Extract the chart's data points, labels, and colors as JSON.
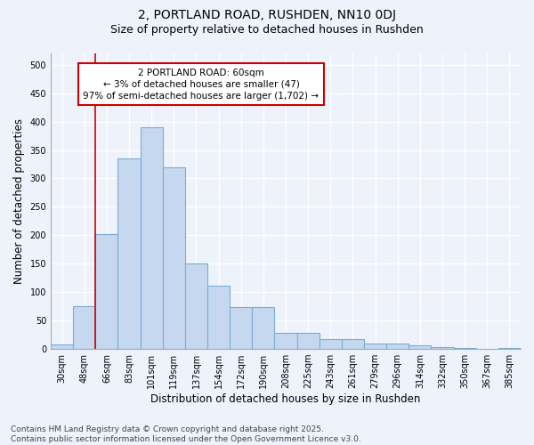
{
  "title_line1": "2, PORTLAND ROAD, RUSHDEN, NN10 0DJ",
  "title_line2": "Size of property relative to detached houses in Rushden",
  "xlabel": "Distribution of detached houses by size in Rushden",
  "ylabel": "Number of detached properties",
  "categories": [
    "30sqm",
    "48sqm",
    "66sqm",
    "83sqm",
    "101sqm",
    "119sqm",
    "137sqm",
    "154sqm",
    "172sqm",
    "190sqm",
    "208sqm",
    "225sqm",
    "243sqm",
    "261sqm",
    "279sqm",
    "296sqm",
    "314sqm",
    "332sqm",
    "350sqm",
    "367sqm",
    "385sqm"
  ],
  "values": [
    8,
    75,
    202,
    335,
    390,
    320,
    150,
    111,
    73,
    73,
    29,
    29,
    17,
    18,
    9,
    10,
    6,
    3,
    1,
    0,
    1
  ],
  "bar_color": "#c5d8f0",
  "bar_edge_color": "#7aaed4",
  "vline_color": "#cc0000",
  "annotation_text": "2 PORTLAND ROAD: 60sqm\n← 3% of detached houses are smaller (47)\n97% of semi-detached houses are larger (1,702) →",
  "annotation_box_facecolor": "#ffffff",
  "annotation_box_edgecolor": "#cc0000",
  "footer_text": "Contains HM Land Registry data © Crown copyright and database right 2025.\nContains public sector information licensed under the Open Government Licence v3.0.",
  "ylim": [
    0,
    520
  ],
  "yticks": [
    0,
    50,
    100,
    150,
    200,
    250,
    300,
    350,
    400,
    450,
    500
  ],
  "bg_color": "#eef2fb",
  "grid_color": "#ffffff",
  "title_fontsize": 10,
  "subtitle_fontsize": 9,
  "tick_fontsize": 7,
  "label_fontsize": 8.5,
  "footer_fontsize": 6.5,
  "annotation_fontsize": 7.5
}
